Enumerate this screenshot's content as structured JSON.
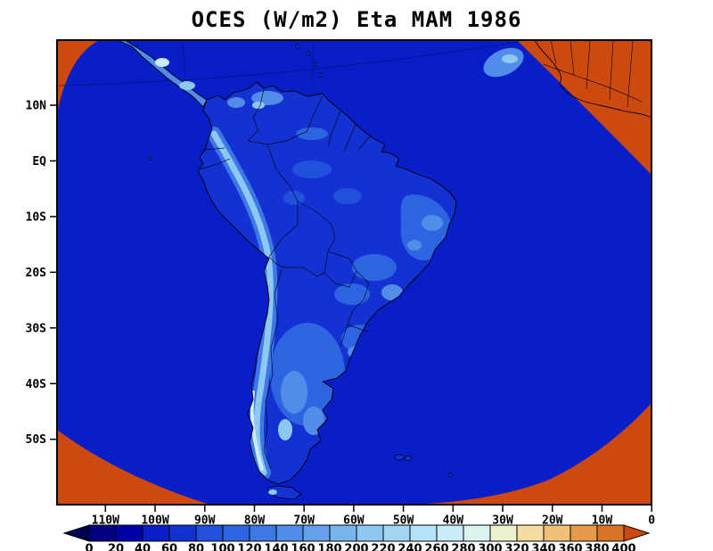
{
  "chart": {
    "title": "OCES (W/m2) Eta MAM 1986"
  },
  "chart_data": {
    "type": "heatmap",
    "title": "OCES (W/m2) Eta MAM 1986",
    "variable": "OCES",
    "units": "W/m2",
    "model": "Eta",
    "season": "MAM",
    "year": "1986",
    "projection_note": "Curved (Lambert-style) regional model domain over South America; area outside the model domain rendered in orange (undefined)",
    "lat_ticks": [
      "10N",
      "EQ",
      "10S",
      "20S",
      "30S",
      "40S",
      "50S"
    ],
    "lon_ticks": [
      "110W",
      "100W",
      "90W",
      "80W",
      "70W",
      "60W",
      "50W",
      "40W",
      "30W",
      "20W",
      "10W",
      "0"
    ],
    "colorbar": {
      "orientation": "horizontal",
      "range": "0 to 400 W/m2 by 20",
      "tick_values": [
        0,
        20,
        40,
        60,
        80,
        100,
        120,
        140,
        160,
        180,
        200,
        220,
        240,
        260,
        280,
        300,
        320,
        340,
        360,
        380,
        400
      ],
      "colors": [
        "#00004f",
        "#000080",
        "#0000a8",
        "#0a1ec8",
        "#1432d2",
        "#2050dc",
        "#2d64e1",
        "#3c78e6",
        "#508ce8",
        "#64a0eb",
        "#78b4ee",
        "#8cc8f1",
        "#a0d6f3",
        "#b4e2f6",
        "#c8ecf8",
        "#daf2f0",
        "#ecf0cc",
        "#f4dca0",
        "#f0c078",
        "#e49a48",
        "#d8742a",
        "#cc4a10"
      ],
      "below_range_color": "#00004f",
      "above_range_color": "#cc4a10"
    },
    "value_summary": {
      "ocean_inside_domain": "mostly 0-60 W/m2 (dark blue)",
      "land_patches": "60-260 W/m2 (lighter blues) along the Andes, Central America, NE Brazil, SE Brazil and Patagonia",
      "outside_domain": "undefined, drawn in orange (including West Africa corner)"
    }
  },
  "colors": {
    "outside": "#cc4a10",
    "domain_ocean": "#0a1ec8",
    "land_base": "#1432d2",
    "frame": "#000000",
    "background": "#ffffff"
  }
}
